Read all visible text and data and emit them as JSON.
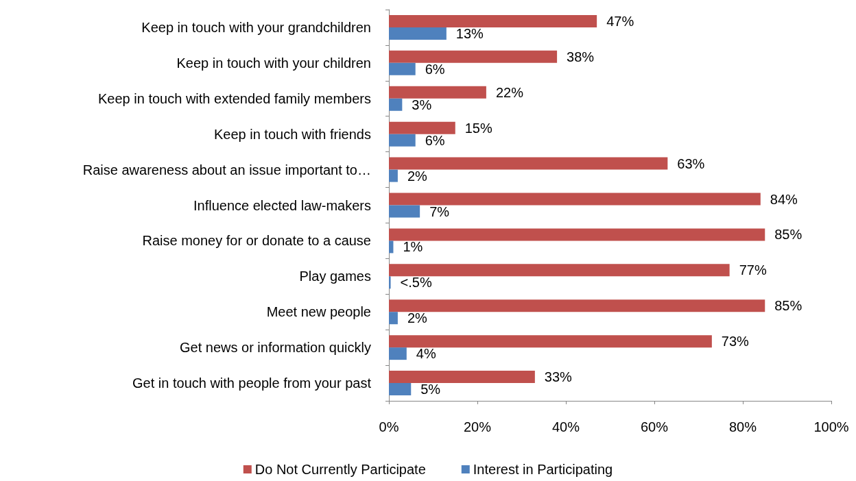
{
  "chart_data": {
    "type": "bar",
    "orientation": "horizontal",
    "categories": [
      "Keep in touch with your grandchildren",
      "Keep in touch with your children",
      "Keep in touch with extended family members",
      "Keep in touch with friends",
      "Raise awareness about an issue important to…",
      "Influence elected law-makers",
      "Raise money for or donate to a cause",
      "Play games",
      "Meet new people",
      "Get news or information quickly",
      "Get in touch with people from your past"
    ],
    "series": [
      {
        "name": "Do Not Currently Participate",
        "color": "#c0504d",
        "values": [
          47,
          38,
          22,
          15,
          63,
          84,
          85,
          77,
          85,
          73,
          33
        ],
        "value_labels": [
          "47%",
          "38%",
          "22%",
          "15%",
          "63%",
          "84%",
          "85%",
          "77%",
          "85%",
          "73%",
          "33%"
        ]
      },
      {
        "name": "Interest in Participating",
        "color": "#4f81bd",
        "values": [
          13,
          6,
          3,
          6,
          2,
          7,
          1,
          0.4,
          2,
          4,
          5
        ],
        "value_labels": [
          "13%",
          "6%",
          "3%",
          "6%",
          "2%",
          "7%",
          "1%",
          "<.5%",
          "2%",
          "4%",
          "5%"
        ]
      }
    ],
    "xlim": [
      0,
      100
    ],
    "xticks": [
      {
        "value": 0,
        "label": "0%"
      },
      {
        "value": 20,
        "label": "20%"
      },
      {
        "value": 40,
        "label": "40%"
      },
      {
        "value": 60,
        "label": "60%"
      },
      {
        "value": 80,
        "label": "80%"
      },
      {
        "value": 100,
        "label": "100%"
      }
    ],
    "grid": false,
    "legend": "bottom"
  }
}
